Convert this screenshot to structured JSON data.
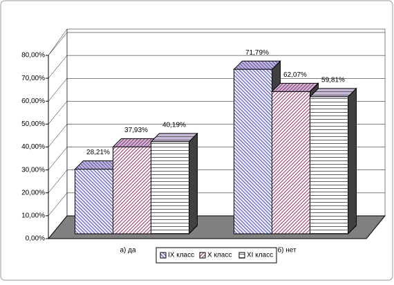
{
  "chart_data": {
    "type": "bar3d",
    "categories": [
      "а) да",
      "б) нет"
    ],
    "series": [
      {
        "name": "IX класс",
        "color": "#5050b0",
        "values": [
          28.21,
          71.79
        ],
        "value_labels": [
          "28,21%",
          "71,79%"
        ]
      },
      {
        "name": "X класс",
        "color": "#993366",
        "values": [
          37.93,
          62.07
        ],
        "value_labels": [
          "37,93%",
          "62,07%"
        ]
      },
      {
        "name": "XI класс",
        "color": "#606060",
        "values": [
          40.19,
          59.81
        ],
        "value_labels": [
          "40,19%",
          "59,81%"
        ]
      }
    ],
    "ylim": [
      0,
      80
    ],
    "yticks": [
      {
        "value": 0,
        "label": "0,00%"
      },
      {
        "value": 10,
        "label": "10,00%"
      },
      {
        "value": 20,
        "label": "20,00%"
      },
      {
        "value": 30,
        "label": "30,00%"
      },
      {
        "value": 40,
        "label": "40,00%"
      },
      {
        "value": 50,
        "label": "50,00%"
      },
      {
        "value": 60,
        "label": "60,00%"
      },
      {
        "value": 70,
        "label": "70,00%"
      },
      {
        "value": 80,
        "label": "80,00%"
      }
    ],
    "grid": true
  }
}
